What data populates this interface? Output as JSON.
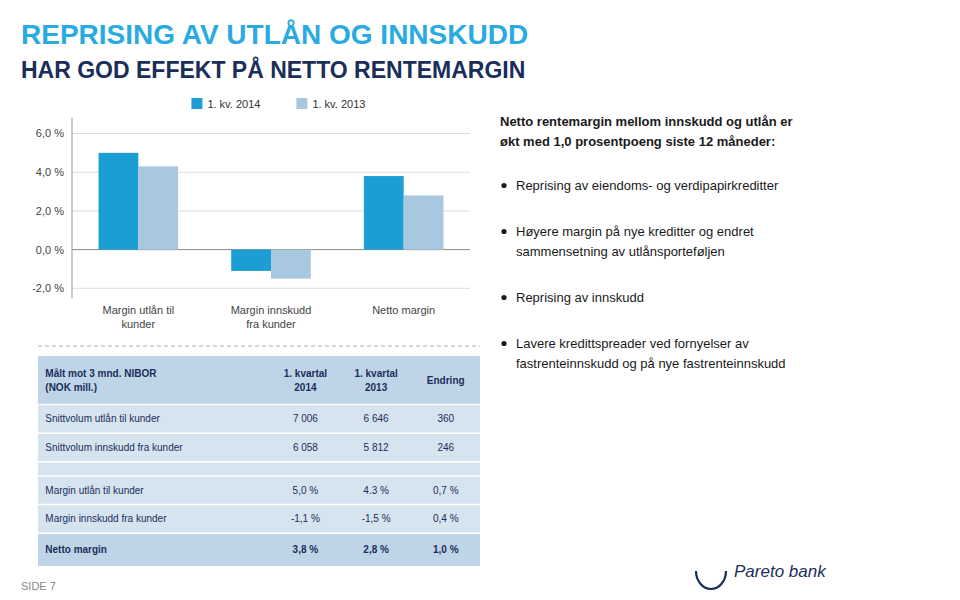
{
  "title": "REPRISING AV UTLÅN OG INNSKUDD",
  "subtitle": "HAR GOD EFFEKT PÅ NETTO RENTEMARGIN",
  "chart_data": {
    "type": "bar",
    "categories": [
      "Margin utlån til\nkunder",
      "Margin innskudd\nfra kunder",
      "Netto margin"
    ],
    "series": [
      {
        "name": "1. kv. 2014",
        "color": "#1a9ed4",
        "values": [
          5.0,
          -1.1,
          3.8
        ]
      },
      {
        "name": "1. kv. 2013",
        "color": "#a8c8e0",
        "values": [
          4.3,
          -1.5,
          2.8
        ]
      }
    ],
    "ylim": [
      -2.5,
      6.8
    ],
    "yticks": [
      {
        "value": -2.0,
        "label": "-2,0 %"
      },
      {
        "value": 0.0,
        "label": "0,0 %"
      },
      {
        "value": 2.0,
        "label": "2,0 %"
      },
      {
        "value": 4.0,
        "label": "4,0 %"
      },
      {
        "value": 6.0,
        "label": "6,0 %"
      }
    ],
    "grid": true,
    "legend": "upper center"
  },
  "table": {
    "header": "Målt mot 3 mnd. NIBOR\n(NOK mill.)",
    "columns": [
      "1. kvartal\n2014",
      "1. kvartal\n2013",
      "Endring"
    ],
    "rows": [
      [
        "Snittvolum utlån til kunder",
        "7 006",
        "6 646",
        "360"
      ],
      [
        "Snittvolum innskudd fra kunder",
        "6 058",
        "5 812",
        "246"
      ],
      null,
      [
        "Margin utlån til kunder",
        "5,0 %",
        "4.3 %",
        "0,7 %"
      ],
      [
        "Margin innskudd fra kunder",
        "-1,1 %",
        "-1,5 %",
        "0,4 %"
      ],
      [
        "Netto margin",
        "3,8 %",
        "2,8 %",
        "1,0 %"
      ]
    ]
  },
  "text_panel": {
    "title": "Netto rentemargin mellom innskudd og utlån er\nøkt med 1,0 prosentpoeng siste 12 måneder:",
    "bullets": [
      "Reprising av eiendoms- og verdipapirkreditter",
      "Høyere margin på nye kreditter og endret\nsammensetning av utlånsporteføljen",
      "Reprising av innskudd",
      "Lavere kredittspreader ved fornyelser av\nfastrenteinnskudd og på nye fastrenteinnskudd"
    ]
  },
  "logo": "Pareto bank",
  "page_label": "SIDE 7"
}
